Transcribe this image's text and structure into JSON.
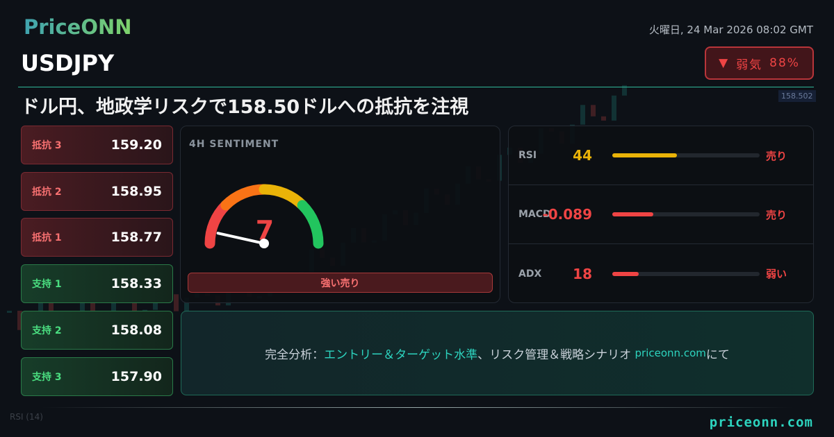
{
  "brand": {
    "logo": "PriceONN",
    "site": "priceonn.com"
  },
  "symbol": "USDJPY",
  "datetime": "火曜日, 24 Mar 2026 08:02 GMT",
  "bias": {
    "icon": "triangle-down-icon",
    "arrow": "▼",
    "label": "弱気",
    "percent": "88%",
    "color": "#ef4444"
  },
  "headline": "ドル円、地政学リスクで158.50ドルへの抵抗を注視",
  "levels": [
    {
      "label": "抵抗 3",
      "value": "159.20",
      "type": "resistance"
    },
    {
      "label": "抵抗 2",
      "value": "158.95",
      "type": "resistance"
    },
    {
      "label": "抵抗 1",
      "value": "158.77",
      "type": "resistance"
    },
    {
      "label": "支持 1",
      "value": "158.33",
      "type": "support"
    },
    {
      "label": "支持 2",
      "value": "158.08",
      "type": "support"
    },
    {
      "label": "支持 3",
      "value": "157.90",
      "type": "support"
    }
  ],
  "sentiment": {
    "title": "4H SENTIMENT",
    "value": "7",
    "score": 7,
    "verdict": "強い売り",
    "colors": [
      "#ef4444",
      "#f97316",
      "#eab308",
      "#22c55e"
    ]
  },
  "indicators": [
    {
      "name": "RSI",
      "value": "44",
      "fill": 0.44,
      "color": "#eab308",
      "signal": "売り"
    },
    {
      "name": "MACD",
      "value": "-0.089",
      "fill": 0.28,
      "color": "#ef4444",
      "signal": "売り"
    },
    {
      "name": "ADX",
      "value": "18",
      "fill": 0.18,
      "color": "#ef4444",
      "signal": "弱い"
    }
  ],
  "cta": {
    "prefix": "完全分析：",
    "highlight": "エントリー＆ターゲット水準",
    "middle": "、リスク管理＆戦略シナリオ ",
    "link": "priceonn.com",
    "suffix": "にて"
  },
  "background_chart": {
    "price_tag": "158.502",
    "rsi_label": "RSI (14)"
  }
}
